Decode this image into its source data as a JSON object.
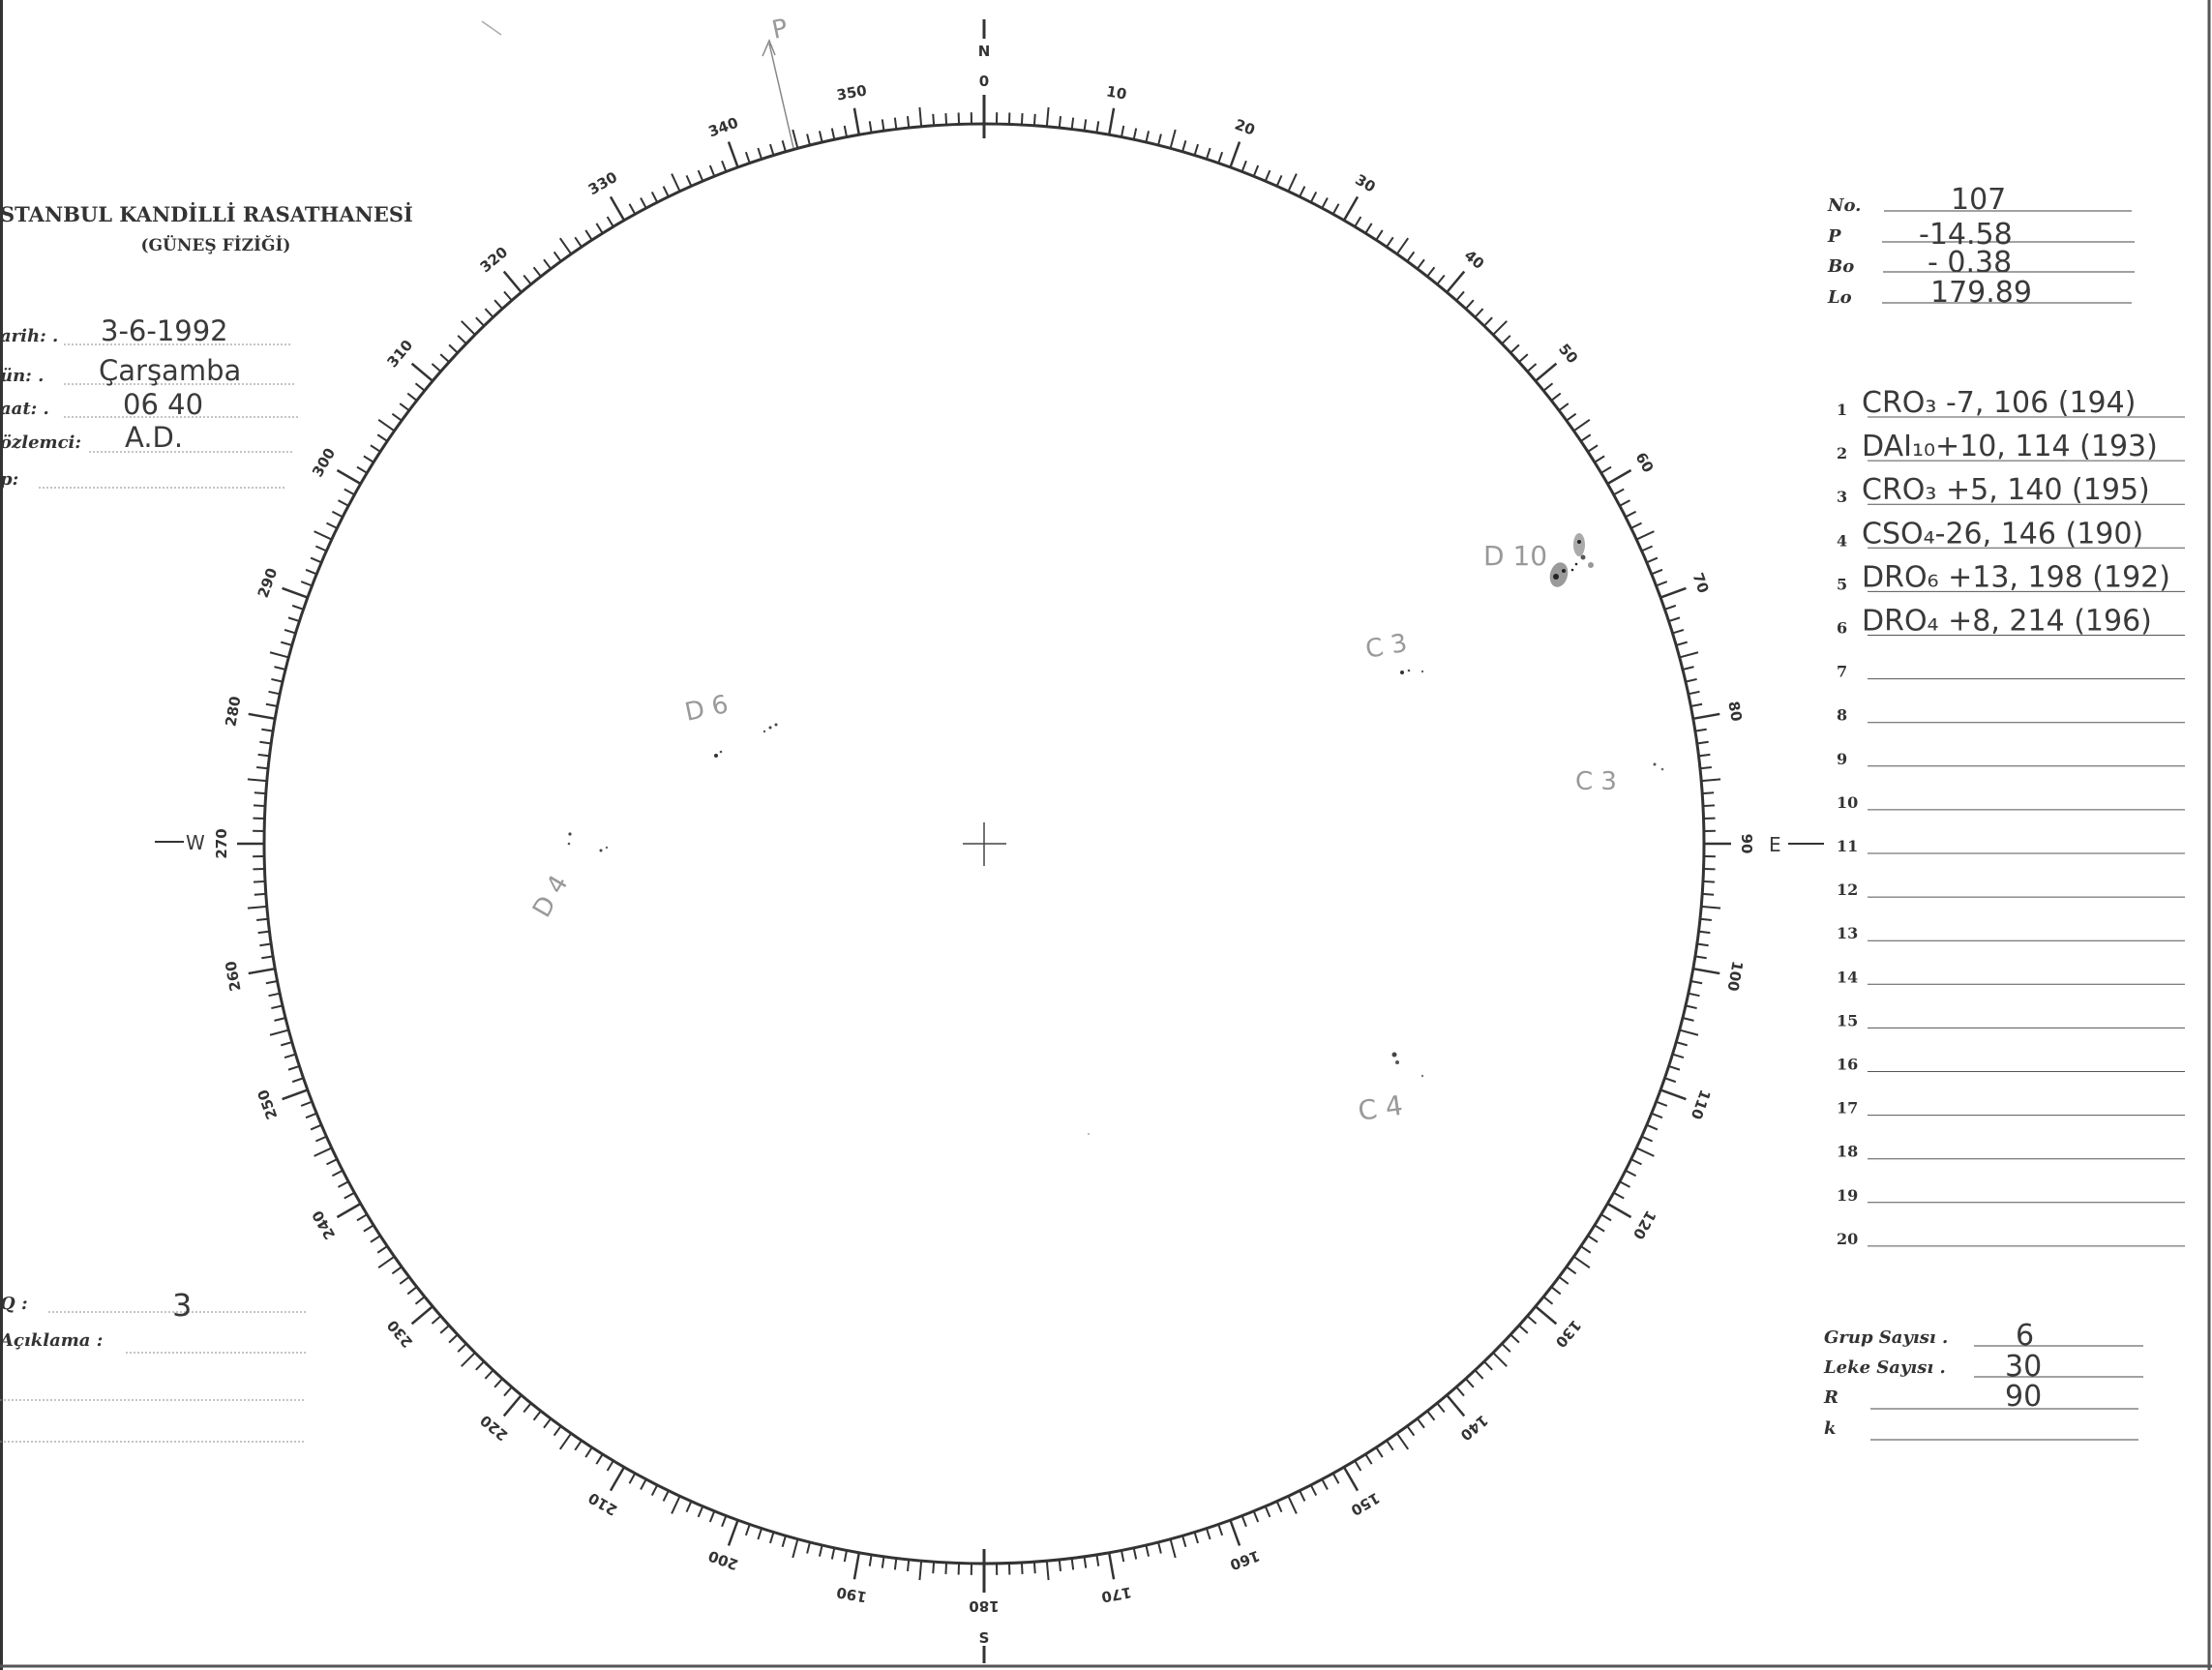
{
  "header": {
    "title": "STANBUL KANDİLLİ RASATHANESİ",
    "subtitle": "(GÜNEŞ FİZİĞİ)"
  },
  "observation": {
    "date_label": "arih: .",
    "date_value": "3-6-1992",
    "day_label": "ün: .",
    "day_value": "Çarşamba",
    "time_label": "aat: .",
    "time_value": "06 40",
    "observer_label": "özlemci:",
    "observer_value": "A.D.",
    "p_label": "p:",
    "p_value": ""
  },
  "bottom_left": {
    "q_label": "Q :",
    "q_value": "3",
    "note_label": "Açıklama :",
    "note_value": ""
  },
  "params": {
    "no_label": "No.",
    "no_value": "107",
    "p_label": "P",
    "p_value": "-14.58",
    "bo_label": "Bo",
    "bo_value": "- 0.38",
    "lo_label": "Lo",
    "lo_value": "179.89"
  },
  "groups": [
    {
      "n": "1",
      "text": "CRO₃ -7, 106 (194)"
    },
    {
      "n": "2",
      "text": "DAI₁₀+10, 114 (193)"
    },
    {
      "n": "3",
      "text": "CRO₃ +5, 140 (195)"
    },
    {
      "n": "4",
      "text": "CSO₄-26, 146 (190)"
    },
    {
      "n": "5",
      "text": "DRO₆ +13, 198 (192)"
    },
    {
      "n": "6",
      "text": "DRO₄ +8, 214 (196)"
    },
    {
      "n": "7",
      "text": ""
    },
    {
      "n": "8",
      "text": ""
    },
    {
      "n": "9",
      "text": ""
    },
    {
      "n": "10",
      "text": ""
    },
    {
      "n": "11",
      "text": ""
    },
    {
      "n": "12",
      "text": ""
    },
    {
      "n": "13",
      "text": ""
    },
    {
      "n": "14",
      "text": ""
    },
    {
      "n": "15",
      "text": ""
    },
    {
      "n": "16",
      "text": ""
    },
    {
      "n": "17",
      "text": ""
    },
    {
      "n": "18",
      "text": ""
    },
    {
      "n": "19",
      "text": ""
    },
    {
      "n": "20",
      "text": ""
    }
  ],
  "summary": {
    "group_count_label": "Grup Sayısı .",
    "group_count_value": "6",
    "spot_count_label": "Leke Sayısı .",
    "spot_count_value": "30",
    "r_label": "R",
    "r_value": "90",
    "k_label": "k",
    "k_value": ""
  },
  "disk": {
    "north": "N",
    "south": "S",
    "east": "E",
    "west": "W",
    "pole_label": "P",
    "scale_labels": [
      "0",
      "10",
      "20",
      "30",
      "40",
      "50",
      "60",
      "70",
      "80",
      "90",
      "100",
      "110",
      "120",
      "130",
      "140",
      "150",
      "160",
      "170",
      "180",
      "190",
      "200",
      "210",
      "220",
      "230",
      "240",
      "250",
      "260",
      "270",
      "280",
      "290",
      "300",
      "310",
      "320",
      "330",
      "340",
      "350"
    ],
    "sunspot_labels": [
      "D 10",
      "C 3",
      "D 6",
      "C 3",
      "D 4",
      "C 4"
    ]
  }
}
